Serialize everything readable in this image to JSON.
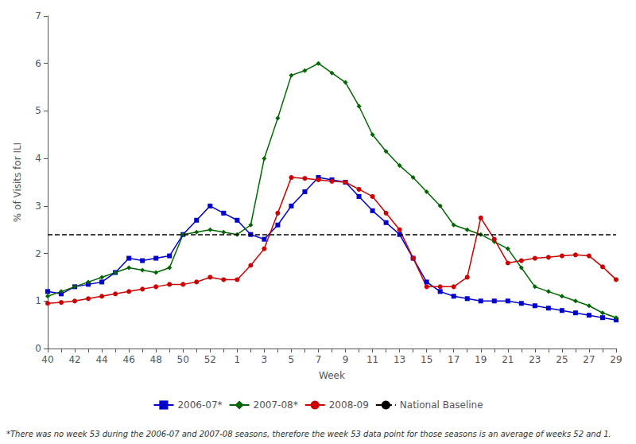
{
  "chart_data": {
    "type": "line",
    "xlabel": "Week",
    "ylabel": "% of Visits for ILI",
    "categories": [
      "40",
      null,
      "42",
      null,
      "44",
      null,
      "46",
      null,
      "48",
      null,
      "50",
      null,
      "52",
      null,
      "1",
      null,
      "3",
      null,
      "5",
      null,
      "7",
      null,
      "9",
      null,
      "11",
      null,
      "13",
      null,
      "15",
      null,
      "17",
      null,
      "19",
      null,
      "21",
      null,
      "23",
      null,
      "25",
      null,
      "27",
      null,
      "29"
    ],
    "series": [
      {
        "name": "2006-07*",
        "color": "#0000CC",
        "marker": "square",
        "values": [
          1.2,
          1.15,
          1.3,
          1.35,
          1.4,
          1.6,
          1.9,
          1.85,
          1.9,
          1.95,
          2.4,
          2.7,
          3.0,
          2.85,
          2.7,
          2.4,
          2.3,
          2.6,
          3.0,
          3.3,
          3.6,
          3.55,
          3.5,
          3.2,
          2.9,
          2.65,
          2.4,
          1.9,
          1.4,
          1.2,
          1.1,
          1.05,
          1.0,
          1.0,
          1.0,
          0.95,
          0.9,
          0.85,
          0.8,
          0.75,
          0.7,
          0.65,
          0.6
        ]
      },
      {
        "name": "2007-08*",
        "color": "#006600",
        "marker": "diamond",
        "values": [
          1.1,
          1.2,
          1.3,
          1.4,
          1.5,
          1.6,
          1.7,
          1.65,
          1.6,
          1.7,
          2.4,
          2.45,
          2.5,
          2.45,
          2.4,
          2.6,
          4.0,
          4.85,
          5.75,
          5.85,
          6.0,
          5.8,
          5.6,
          5.1,
          4.5,
          4.15,
          3.85,
          3.6,
          3.3,
          3.0,
          2.6,
          2.5,
          2.4,
          2.25,
          2.1,
          1.7,
          1.3,
          1.2,
          1.1,
          1.0,
          0.9,
          0.75,
          0.65
        ]
      },
      {
        "name": "2008-09",
        "color": "#CC0000",
        "marker": "circle",
        "values": [
          0.95,
          0.97,
          1.0,
          1.05,
          1.1,
          1.15,
          1.2,
          1.25,
          1.3,
          1.35,
          1.35,
          1.4,
          1.5,
          1.45,
          1.45,
          1.75,
          2.1,
          2.85,
          3.6,
          3.58,
          3.55,
          3.52,
          3.5,
          3.35,
          3.2,
          2.85,
          2.5,
          1.9,
          1.3,
          1.3,
          1.3,
          1.5,
          2.75,
          2.3,
          1.8,
          1.85,
          1.9,
          1.92,
          1.95,
          1.97,
          1.95,
          1.72,
          1.45
        ]
      },
      {
        "name": "National Baseline",
        "type": "hline",
        "color": "#000000",
        "line_style": "dashed",
        "value": 2.4
      }
    ],
    "ylim": [
      0,
      7
    ],
    "yticks": [
      0,
      1,
      2,
      3,
      4,
      5,
      6,
      7
    ],
    "grid": false,
    "legend": "bottom",
    "footnote": "*There was no week 53 during the 2006-07 and 2007-08 seasons, therefore the week 53 data point for those seasons is an average of weeks 52 and 1."
  }
}
